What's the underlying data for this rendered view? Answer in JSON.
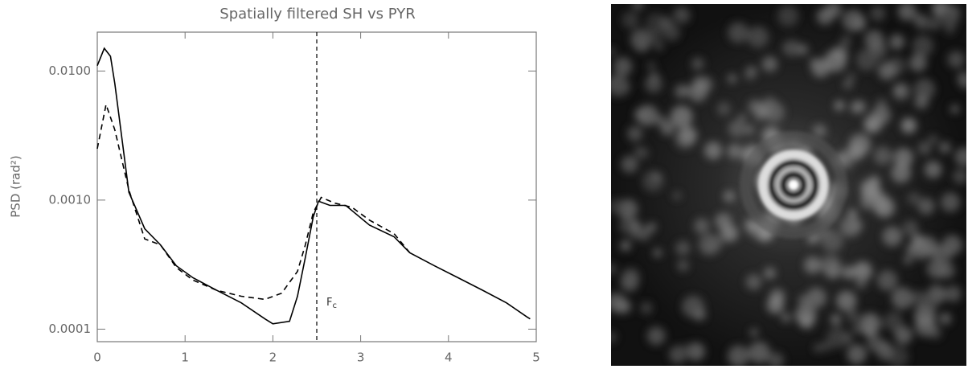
{
  "chart_data": {
    "type": "line",
    "title": "Spatially filtered SH vs PYR",
    "ylabel": "PSD (rad²)",
    "log_y": true,
    "xlim": [
      0,
      5
    ],
    "ylim": [
      8e-05,
      0.02
    ],
    "xticks": [
      0,
      1,
      2,
      3,
      4,
      5
    ],
    "yticks": [
      {
        "value": 0.0001,
        "label": "0.0001"
      },
      {
        "value": 0.001,
        "label": "0.0010"
      },
      {
        "value": 0.01,
        "label": "0.0100"
      }
    ],
    "vline": 2.5,
    "vline_label": {
      "text": "F",
      "sub": "c"
    },
    "series": [
      {
        "color": "#000000",
        "dash": false,
        "x": [
          0,
          0.08,
          0.15,
          0.2,
          0.36,
          0.54,
          0.72,
          0.9,
          1.09,
          1.36,
          1.64,
          1.91,
          2.0,
          2.19,
          2.28,
          2.37,
          2.46,
          2.52,
          2.65,
          2.83,
          3.1,
          3.38,
          3.56,
          3.84,
          4.11,
          4.39,
          4.66,
          4.89,
          4.93
        ],
        "values": [
          0.011,
          0.015,
          0.013,
          0.008,
          0.00115,
          0.0006,
          0.00045,
          0.00031,
          0.00025,
          0.0002,
          0.00016,
          0.00012,
          0.00011,
          0.000115,
          0.00018,
          0.00036,
          0.00074,
          0.00098,
          0.00091,
          0.00091,
          0.00064,
          0.00052,
          0.00039,
          0.00031,
          0.00025,
          0.0002,
          0.00016,
          0.000125,
          0.00012
        ]
      },
      {
        "color": "#000000",
        "dash": true,
        "x": [
          0,
          0.1,
          0.2,
          0.36,
          0.54,
          0.72,
          0.9,
          1.09,
          1.36,
          1.64,
          1.91,
          2.1,
          2.28,
          2.37,
          2.46,
          2.55,
          2.7,
          2.9,
          3.1,
          3.38,
          3.56
        ],
        "values": [
          0.0025,
          0.0055,
          0.0035,
          0.0012,
          0.0005,
          0.00045,
          0.0003,
          0.00024,
          0.0002,
          0.00018,
          0.00017,
          0.00019,
          0.00028,
          0.00045,
          0.0008,
          0.00105,
          0.00095,
          0.00088,
          0.0007,
          0.00055,
          0.00039
        ]
      }
    ]
  }
}
